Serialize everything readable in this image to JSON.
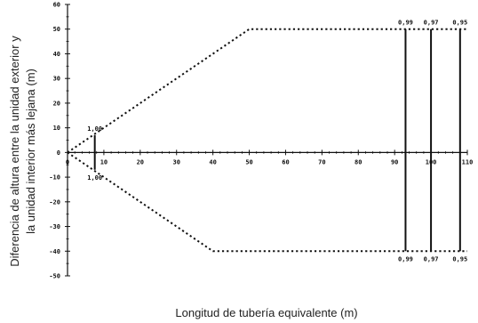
{
  "chart_data": {
    "type": "line",
    "xlabel": "Longitud de tubería equivalente (m)",
    "ylabel_lines": [
      "Diferencia de altura entre la unidad exterior y",
      "la unidad interior más lejana (m)"
    ],
    "xlim": [
      0,
      110
    ],
    "ylim": [
      -50,
      60
    ],
    "x_ticks": [
      0,
      10,
      20,
      30,
      40,
      50,
      60,
      70,
      80,
      90,
      100,
      110
    ],
    "x_tick_labels": [
      "0",
      "10",
      "20",
      "30",
      "40",
      "50",
      "60",
      "70",
      "80",
      "90",
      "100",
      "110"
    ],
    "y_ticks": [
      60,
      50,
      40,
      30,
      20,
      10,
      0,
      -10,
      -20,
      -30,
      -40,
      -50
    ],
    "y_tick_labels": [
      "60",
      "50",
      "40",
      "30",
      "20",
      "10",
      "0",
      "-10",
      "-20",
      "-30",
      "-40",
      "-50"
    ],
    "series": [
      {
        "style": "dotted",
        "x": [
          0,
          50,
          110
        ],
        "y": [
          0,
          50,
          50
        ]
      },
      {
        "style": "dotted",
        "x": [
          0,
          40,
          110
        ],
        "y": [
          0,
          -40,
          -40
        ]
      }
    ],
    "vertical_lines": [
      {
        "x": 7.5,
        "y": [
          -7,
          7
        ]
      },
      {
        "x": 93,
        "y": [
          -40,
          50
        ]
      },
      {
        "x": 100,
        "y": [
          -40,
          50
        ]
      },
      {
        "x": 108,
        "y": [
          -40,
          50
        ]
      }
    ],
    "annotations": [
      {
        "text": "1,00",
        "x": 7.5,
        "y": 7,
        "pos": "above"
      },
      {
        "text": "1,00",
        "x": 7.5,
        "y": -7,
        "pos": "below"
      },
      {
        "text": "0,99",
        "x": 93,
        "y": 50,
        "pos": "above"
      },
      {
        "text": "0,97",
        "x": 100,
        "y": 50,
        "pos": "above"
      },
      {
        "text": "0,95",
        "x": 108,
        "y": 50,
        "pos": "above"
      },
      {
        "text": "0,99",
        "x": 93,
        "y": -40,
        "pos": "below"
      },
      {
        "text": "0,97",
        "x": 100,
        "y": -40,
        "pos": "below"
      },
      {
        "text": "0,95",
        "x": 108,
        "y": -40,
        "pos": "below"
      }
    ]
  }
}
